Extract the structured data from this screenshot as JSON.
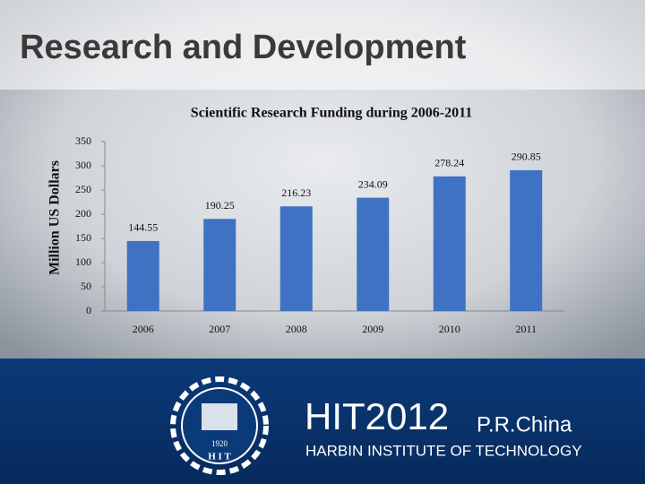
{
  "slide": {
    "title": "Research and Development",
    "logo": {
      "year": "1920",
      "text": "H I T"
    },
    "footer": {
      "brand": "HIT2012",
      "country": "P.R.China",
      "institute": "HARBIN INSTITUTE OF TECHNOLOGY"
    }
  },
  "chart_data": {
    "type": "bar",
    "title": "Scientific Research Funding during 2006-2011",
    "y_label": "Million US Dollars",
    "categories": [
      "2006",
      "2007",
      "2008",
      "2009",
      "2010",
      "2011"
    ],
    "values": [
      144.55,
      190.25,
      216.23,
      234.09,
      278.24,
      290.85
    ],
    "color": "#3f72c2",
    "ylim": [
      0,
      350
    ],
    "yticks": [
      0,
      50,
      100,
      150,
      200,
      250,
      300,
      350
    ],
    "grid": false
  }
}
